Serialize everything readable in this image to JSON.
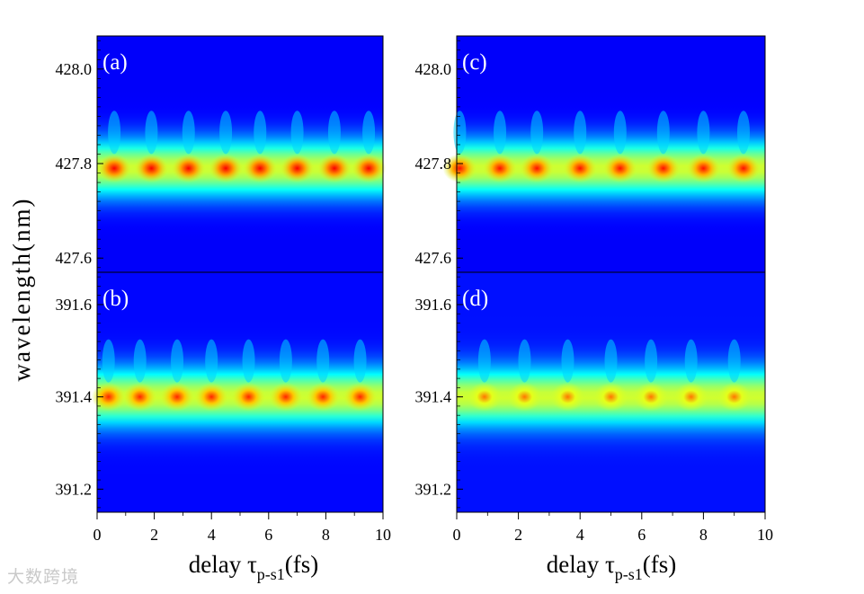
{
  "chart_data": [
    {
      "type": "heatmap",
      "panel_label": "(a)",
      "xlabel": "delay",
      "xlim": [
        0,
        10
      ],
      "ylim": [
        427.57,
        428.07
      ],
      "yticks": [
        {
          "value": 427.6,
          "label": "427.6"
        },
        {
          "value": 427.8,
          "label": "427.8"
        },
        {
          "value": 428.0,
          "label": "428.0"
        }
      ],
      "line_center": 427.79,
      "peak_positions": [
        0.6,
        1.9,
        3.2,
        4.5,
        5.7,
        7.0,
        8.3,
        9.5
      ],
      "peak_intensity": 0.88,
      "background_intensity": 0.12
    },
    {
      "type": "heatmap",
      "panel_label": "(b)",
      "xlabel": "delay",
      "xlim": [
        0,
        10
      ],
      "ylim": [
        391.15,
        391.67
      ],
      "yticks": [
        {
          "value": 391.2,
          "label": "391.2"
        },
        {
          "value": 391.4,
          "label": "391.4"
        },
        {
          "value": 391.6,
          "label": "391.6"
        }
      ],
      "line_center": 391.4,
      "peak_positions": [
        0.4,
        1.5,
        2.8,
        4.0,
        5.3,
        6.6,
        7.9,
        9.2
      ],
      "peak_intensity": 0.84,
      "background_intensity": 0.13
    },
    {
      "type": "heatmap",
      "panel_label": "(c)",
      "xlabel": "delay",
      "xlim": [
        0,
        10
      ],
      "ylim": [
        427.57,
        428.07
      ],
      "yticks": [
        {
          "value": 427.6,
          "label": "427.6"
        },
        {
          "value": 427.8,
          "label": "427.8"
        },
        {
          "value": 428.0,
          "label": "428.0"
        }
      ],
      "line_center": 427.79,
      "peak_positions": [
        0.1,
        1.4,
        2.6,
        4.0,
        5.3,
        6.7,
        8.0,
        9.3
      ],
      "peak_intensity": 0.86,
      "background_intensity": 0.12
    },
    {
      "type": "heatmap",
      "panel_label": "(d)",
      "xlabel": "delay",
      "xlim": [
        0,
        10
      ],
      "ylim": [
        391.15,
        391.67
      ],
      "yticks": [
        {
          "value": 391.2,
          "label": "391.2"
        },
        {
          "value": 391.4,
          "label": "391.4"
        },
        {
          "value": 391.6,
          "label": "391.6"
        }
      ],
      "line_center": 391.4,
      "peak_positions": [
        0.9,
        2.2,
        3.6,
        5.0,
        6.3,
        7.6,
        9.0
      ],
      "peak_intensity": 0.76,
      "background_intensity": 0.14
    }
  ],
  "figure": {
    "ylabel": "wavelength(nm)",
    "xticks": [
      "0",
      "2",
      "4",
      "6",
      "8",
      "10"
    ],
    "xlabel_left_main": "delay τ",
    "xlabel_left_sub": "p-s1",
    "xlabel_left_unit": "(fs)",
    "xlabel_right_main": "delay τ",
    "xlabel_right_sub": "p-s1",
    "xlabel_right_unit": "(fs)",
    "colormap": "jet"
  },
  "watermark": "大数跨境"
}
